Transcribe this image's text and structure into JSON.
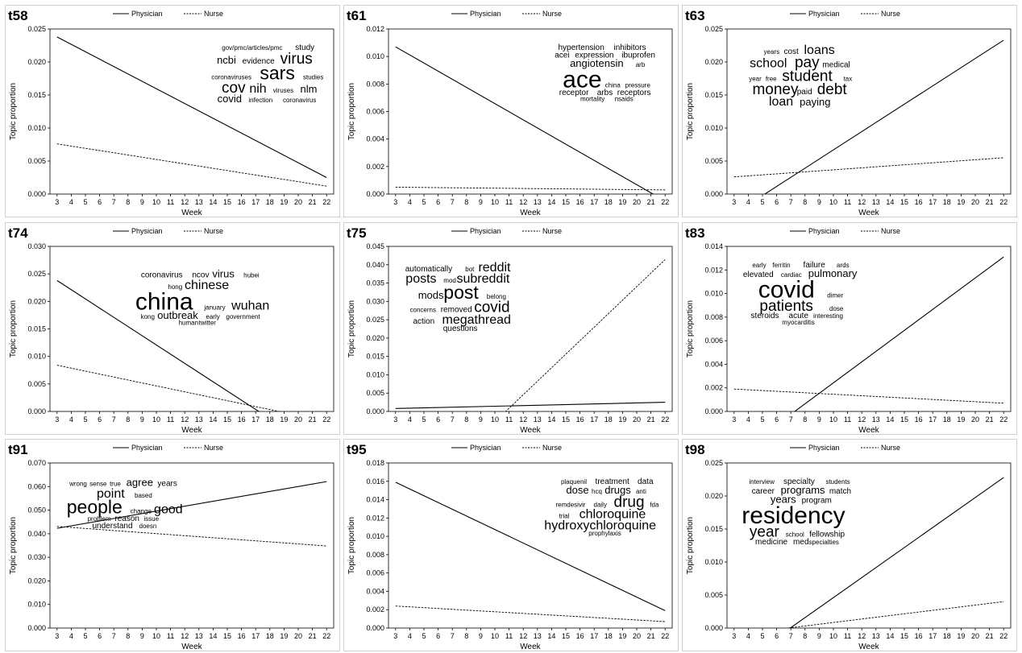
{
  "figure": {
    "legend_physician": "Physician",
    "legend_nurse": "Nurse",
    "xlabel": "Week",
    "ylabel": "Topic proportion"
  },
  "chart_data": [
    {
      "type": "line",
      "id": "t58",
      "x": [
        3,
        4,
        5,
        6,
        7,
        8,
        9,
        10,
        11,
        12,
        13,
        14,
        15,
        16,
        17,
        18,
        19,
        20,
        21,
        22
      ],
      "xlabel": "Week",
      "ylabel": "Topic proportion",
      "ylim": [
        0,
        0.025
      ],
      "yticks": [
        "0.000",
        "0.005",
        "0.010",
        "0.015",
        "0.020",
        "0.025"
      ],
      "series": [
        {
          "name": "Physician",
          "start": 0.0238,
          "end": 0.0025,
          "style": "solid"
        },
        {
          "name": "Nurse",
          "start": 0.0076,
          "end": 0.0012,
          "style": "dashed"
        }
      ],
      "wordcloud": {
        "anchor": "right",
        "words": [
          {
            "text": "gov/pmc/articles/pmc",
            "w": 1
          },
          {
            "text": "study",
            "w": 2
          },
          {
            "text": "ncbi",
            "w": 3
          },
          {
            "text": "evidence",
            "w": 2
          },
          {
            "text": "virus",
            "w": 5
          },
          {
            "text": "coronaviruses",
            "w": 1
          },
          {
            "text": "sars",
            "w": 6
          },
          {
            "text": "studies",
            "w": 1
          },
          {
            "text": "cov",
            "w": 5
          },
          {
            "text": "nih",
            "w": 4
          },
          {
            "text": "viruses",
            "w": 1
          },
          {
            "text": "nlm",
            "w": 3
          },
          {
            "text": "covid",
            "w": 3
          },
          {
            "text": "infection",
            "w": 1
          },
          {
            "text": "coronavirus",
            "w": 1
          }
        ]
      }
    },
    {
      "type": "line",
      "id": "t61",
      "x": [
        3,
        4,
        5,
        6,
        7,
        8,
        9,
        10,
        11,
        12,
        13,
        14,
        15,
        16,
        17,
        18,
        19,
        20,
        21,
        22
      ],
      "xlabel": "Week",
      "ylabel": "Topic proportion",
      "ylim": [
        0,
        0.012
      ],
      "yticks": [
        "0.000",
        "0.002",
        "0.004",
        "0.006",
        "0.008",
        "0.010",
        "0.012"
      ],
      "series": [
        {
          "name": "Physician",
          "start": 0.0107,
          "end": -0.0005,
          "style": "solid"
        },
        {
          "name": "Nurse",
          "start": 0.0005,
          "end": 0.0003,
          "style": "dashed"
        }
      ],
      "wordcloud": {
        "anchor": "right",
        "words": [
          {
            "text": "hypertension",
            "w": 2
          },
          {
            "text": "inhibitors",
            "w": 2
          },
          {
            "text": "acei",
            "w": 2
          },
          {
            "text": "expression",
            "w": 2
          },
          {
            "text": "ibuprofen",
            "w": 2
          },
          {
            "text": "angiotensin",
            "w": 3
          },
          {
            "text": "arb",
            "w": 1
          },
          {
            "text": "ace",
            "w": 8
          },
          {
            "text": "china",
            "w": 1
          },
          {
            "text": "pressure",
            "w": 1
          },
          {
            "text": "receptor",
            "w": 2
          },
          {
            "text": "arbs",
            "w": 2
          },
          {
            "text": "receptors",
            "w": 2
          },
          {
            "text": "mortality",
            "w": 1
          },
          {
            "text": "nsaids",
            "w": 1
          }
        ]
      }
    },
    {
      "type": "line",
      "id": "t63",
      "x": [
        3,
        4,
        5,
        6,
        7,
        8,
        9,
        10,
        11,
        12,
        13,
        14,
        15,
        16,
        17,
        18,
        19,
        20,
        21,
        22
      ],
      "xlabel": "Week",
      "ylabel": "Topic proportion",
      "ylim": [
        0,
        0.025
      ],
      "yticks": [
        "0.000",
        "0.005",
        "0.010",
        "0.015",
        "0.020",
        "0.025"
      ],
      "series": [
        {
          "name": "Physician",
          "start": -0.003,
          "end": 0.0233,
          "style": "solid"
        },
        {
          "name": "Nurse",
          "start": 0.0026,
          "end": 0.0055,
          "style": "dashed"
        }
      ],
      "wordcloud": {
        "anchor": "left",
        "words": [
          {
            "text": "years",
            "w": 1
          },
          {
            "text": "cost",
            "w": 2
          },
          {
            "text": "loans",
            "w": 4
          },
          {
            "text": "school",
            "w": 4
          },
          {
            "text": "pay",
            "w": 5
          },
          {
            "text": "medical",
            "w": 2
          },
          {
            "text": "year",
            "w": 1
          },
          {
            "text": "free",
            "w": 1
          },
          {
            "text": "student",
            "w": 5
          },
          {
            "text": "tax",
            "w": 1
          },
          {
            "text": "money",
            "w": 5
          },
          {
            "text": "paid",
            "w": 2
          },
          {
            "text": "debt",
            "w": 5
          },
          {
            "text": "loan",
            "w": 4
          },
          {
            "text": "paying",
            "w": 3
          }
        ]
      }
    },
    {
      "type": "line",
      "id": "t74",
      "x": [
        3,
        4,
        5,
        6,
        7,
        8,
        9,
        10,
        11,
        12,
        13,
        14,
        15,
        16,
        17,
        18,
        19,
        20,
        21,
        22
      ],
      "xlabel": "Week",
      "ylabel": "Topic proportion",
      "ylim": [
        0,
        0.03
      ],
      "yticks": [
        "0.000",
        "0.005",
        "0.010",
        "0.015",
        "0.020",
        "0.025",
        "0.030"
      ],
      "series": [
        {
          "name": "Physician",
          "start": 0.0238,
          "end": -0.008,
          "style": "solid"
        },
        {
          "name": "Nurse",
          "start": 0.0084,
          "end": -0.0018,
          "style": "dashed"
        }
      ],
      "wordcloud": {
        "anchor": "center",
        "words": [
          {
            "text": "coronavirus",
            "w": 2
          },
          {
            "text": "ncov",
            "w": 2
          },
          {
            "text": "virus",
            "w": 3
          },
          {
            "text": "hubei",
            "w": 1
          },
          {
            "text": "hong",
            "w": 1
          },
          {
            "text": "chinese",
            "w": 4
          },
          {
            "text": "china",
            "w": 8
          },
          {
            "text": "january",
            "w": 1
          },
          {
            "text": "wuhan",
            "w": 4
          },
          {
            "text": "kong",
            "w": 1
          },
          {
            "text": "outbreak",
            "w": 3
          },
          {
            "text": "early",
            "w": 1
          },
          {
            "text": "government",
            "w": 1
          },
          {
            "text": "human",
            "w": 1
          },
          {
            "text": "twitter",
            "w": 1
          }
        ]
      }
    },
    {
      "type": "line",
      "id": "t75",
      "x": [
        3,
        4,
        5,
        6,
        7,
        8,
        9,
        10,
        11,
        12,
        13,
        14,
        15,
        16,
        17,
        18,
        19,
        20,
        21,
        22
      ],
      "xlabel": "Week",
      "ylabel": "Topic proportion",
      "ylim": [
        0,
        0.045
      ],
      "yticks": [
        "0.000",
        "0.005",
        "0.010",
        "0.015",
        "0.020",
        "0.025",
        "0.030",
        "0.035",
        "0.040",
        "0.045"
      ],
      "series": [
        {
          "name": "Physician",
          "start": 0.0008,
          "end": 0.0025,
          "style": "solid"
        },
        {
          "name": "Nurse",
          "start": -0.0286,
          "end": 0.0414,
          "style": "dashed"
        }
      ],
      "wordcloud": {
        "anchor": "left",
        "words": [
          {
            "text": "automatically",
            "w": 2
          },
          {
            "text": "bot",
            "w": 1
          },
          {
            "text": "reddit",
            "w": 4
          },
          {
            "text": "posts",
            "w": 4
          },
          {
            "text": "mod",
            "w": 1
          },
          {
            "text": "subreddit",
            "w": 4
          },
          {
            "text": "mods",
            "w": 3
          },
          {
            "text": "post",
            "w": 6
          },
          {
            "text": "belong",
            "w": 1
          },
          {
            "text": "concerns",
            "w": 1
          },
          {
            "text": "removed",
            "w": 2
          },
          {
            "text": "covid",
            "w": 5
          },
          {
            "text": "action",
            "w": 2
          },
          {
            "text": "megathread",
            "w": 4
          },
          {
            "text": "questions",
            "w": 2
          }
        ]
      }
    },
    {
      "type": "line",
      "id": "t83",
      "x": [
        3,
        4,
        5,
        6,
        7,
        8,
        9,
        10,
        11,
        12,
        13,
        14,
        15,
        16,
        17,
        18,
        19,
        20,
        21,
        22
      ],
      "xlabel": "Week",
      "ylabel": "Topic proportion",
      "ylim": [
        0,
        0.014
      ],
      "yticks": [
        "0.000",
        "0.002",
        "0.004",
        "0.006",
        "0.008",
        "0.010",
        "0.012",
        "0.014"
      ],
      "series": [
        {
          "name": "Physician",
          "start": -0.0038,
          "end": 0.0131,
          "style": "solid"
        },
        {
          "name": "Nurse",
          "start": 0.0019,
          "end": 0.0007,
          "style": "dashed"
        }
      ],
      "wordcloud": {
        "anchor": "left",
        "words": [
          {
            "text": "early",
            "w": 1
          },
          {
            "text": "ferritin",
            "w": 1
          },
          {
            "text": "failure",
            "w": 2
          },
          {
            "text": "ards",
            "w": 1
          },
          {
            "text": "elevated",
            "w": 2
          },
          {
            "text": "cardiac",
            "w": 1
          },
          {
            "text": "pulmonary",
            "w": 3
          },
          {
            "text": "covid",
            "w": 8
          },
          {
            "text": "dimer",
            "w": 1
          },
          {
            "text": "patients",
            "w": 5
          },
          {
            "text": "dose",
            "w": 1
          },
          {
            "text": "steroids",
            "w": 2
          },
          {
            "text": "acute",
            "w": 2
          },
          {
            "text": "interesting",
            "w": 1
          },
          {
            "text": "myocarditis",
            "w": 1
          }
        ]
      }
    },
    {
      "type": "line",
      "id": "t91",
      "x": [
        3,
        4,
        5,
        6,
        7,
        8,
        9,
        10,
        11,
        12,
        13,
        14,
        15,
        16,
        17,
        18,
        19,
        20,
        21,
        22
      ],
      "xlabel": "Week",
      "ylabel": "Topic proportion",
      "ylim": [
        0,
        0.07
      ],
      "yticks": [
        "0.000",
        "0.010",
        "0.020",
        "0.030",
        "0.040",
        "0.050",
        "0.060",
        "0.070"
      ],
      "series": [
        {
          "name": "Physician",
          "start": 0.0423,
          "end": 0.0621,
          "style": "solid"
        },
        {
          "name": "Nurse",
          "start": 0.0431,
          "end": 0.0348,
          "style": "dashed"
        }
      ],
      "wordcloud": {
        "anchor": "left",
        "words": [
          {
            "text": "wrong",
            "w": 1
          },
          {
            "text": "sense",
            "w": 1
          },
          {
            "text": "true",
            "w": 1
          },
          {
            "text": "agree",
            "w": 3
          },
          {
            "text": "years",
            "w": 2
          },
          {
            "text": "point",
            "w": 4
          },
          {
            "text": "based",
            "w": 1
          },
          {
            "text": "people",
            "w": 6
          },
          {
            "text": "change",
            "w": 1
          },
          {
            "text": "good",
            "w": 4
          },
          {
            "text": "problem",
            "w": 1
          },
          {
            "text": "reason",
            "w": 2
          },
          {
            "text": "issue",
            "w": 1
          },
          {
            "text": "understand",
            "w": 2
          },
          {
            "text": "doesn",
            "w": 1
          }
        ]
      }
    },
    {
      "type": "line",
      "id": "t95",
      "x": [
        3,
        4,
        5,
        6,
        7,
        8,
        9,
        10,
        11,
        12,
        13,
        14,
        15,
        16,
        17,
        18,
        19,
        20,
        21,
        22
      ],
      "xlabel": "Week",
      "ylabel": "Topic proportion",
      "ylim": [
        0,
        0.018
      ],
      "yticks": [
        "0.000",
        "0.002",
        "0.004",
        "0.006",
        "0.008",
        "0.010",
        "0.012",
        "0.014",
        "0.016",
        "0.018"
      ],
      "series": [
        {
          "name": "Physician",
          "start": 0.0159,
          "end": 0.0019,
          "style": "solid"
        },
        {
          "name": "Nurse",
          "start": 0.0024,
          "end": 0.0007,
          "style": "dashed"
        }
      ],
      "wordcloud": {
        "anchor": "right",
        "words": [
          {
            "text": "plaquenil",
            "w": 1
          },
          {
            "text": "treatment",
            "w": 2
          },
          {
            "text": "data",
            "w": 2
          },
          {
            "text": "dose",
            "w": 3
          },
          {
            "text": "hcq",
            "w": 1
          },
          {
            "text": "drugs",
            "w": 3
          },
          {
            "text": "anti",
            "w": 1
          },
          {
            "text": "remdesivir",
            "w": 1
          },
          {
            "text": "daily",
            "w": 1
          },
          {
            "text": "drug",
            "w": 5
          },
          {
            "text": "fda",
            "w": 1
          },
          {
            "text": "trial",
            "w": 1
          },
          {
            "text": "chloroquine",
            "w": 4
          },
          {
            "text": "hydroxychloroquine",
            "w": 4
          },
          {
            "text": "prophylaxis",
            "w": 1
          }
        ]
      }
    },
    {
      "type": "line",
      "id": "t98",
      "x": [
        3,
        4,
        5,
        6,
        7,
        8,
        9,
        10,
        11,
        12,
        13,
        14,
        15,
        16,
        17,
        18,
        19,
        20,
        21,
        22
      ],
      "xlabel": "Week",
      "ylabel": "Topic proportion",
      "ylim": [
        0,
        0.025
      ],
      "yticks": [
        "0.000",
        "0.005",
        "0.010",
        "0.015",
        "0.020",
        "0.025"
      ],
      "series": [
        {
          "name": "Physician",
          "start": -0.006,
          "end": 0.0228,
          "style": "solid"
        },
        {
          "name": "Nurse",
          "start": -0.001,
          "end": 0.004,
          "style": "dashed"
        }
      ],
      "wordcloud": {
        "anchor": "left",
        "words": [
          {
            "text": "interview",
            "w": 1
          },
          {
            "text": "specialty",
            "w": 2
          },
          {
            "text": "students",
            "w": 1
          },
          {
            "text": "career",
            "w": 2
          },
          {
            "text": "programs",
            "w": 3
          },
          {
            "text": "match",
            "w": 2
          },
          {
            "text": "years",
            "w": 3
          },
          {
            "text": "program",
            "w": 2
          },
          {
            "text": "residency",
            "w": 8
          },
          {
            "text": "year",
            "w": 5
          },
          {
            "text": "school",
            "w": 1
          },
          {
            "text": "fellowship",
            "w": 2
          },
          {
            "text": "medicine",
            "w": 2
          },
          {
            "text": "med",
            "w": 2
          },
          {
            "text": "specialties",
            "w": 1
          }
        ]
      }
    }
  ]
}
